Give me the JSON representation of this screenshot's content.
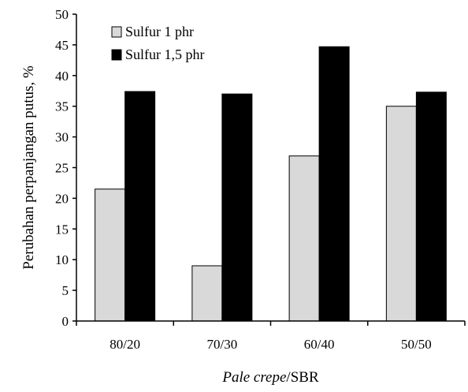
{
  "chart_data": {
    "type": "bar",
    "title": "",
    "xlabel": {
      "italic_part": "Pale crepe",
      "plain_part": "/SBR"
    },
    "ylabel": "Perubahan  perpanjangan putus, %",
    "categories": [
      "80/20",
      "70/30",
      "60/40",
      "50/50"
    ],
    "series": [
      {
        "name": "Sulfur 1 phr",
        "color": "#d9d9d9",
        "values": [
          21.5,
          9.0,
          26.9,
          35.0
        ]
      },
      {
        "name": "Sulfur 1,5 phr",
        "color": "#000000",
        "values": [
          37.4,
          37.0,
          44.7,
          37.3
        ]
      }
    ],
    "ylim": [
      0,
      50
    ],
    "yticks": [
      0,
      5,
      10,
      15,
      20,
      25,
      30,
      35,
      40,
      45,
      50
    ],
    "grid": false,
    "legend": "top-left"
  }
}
